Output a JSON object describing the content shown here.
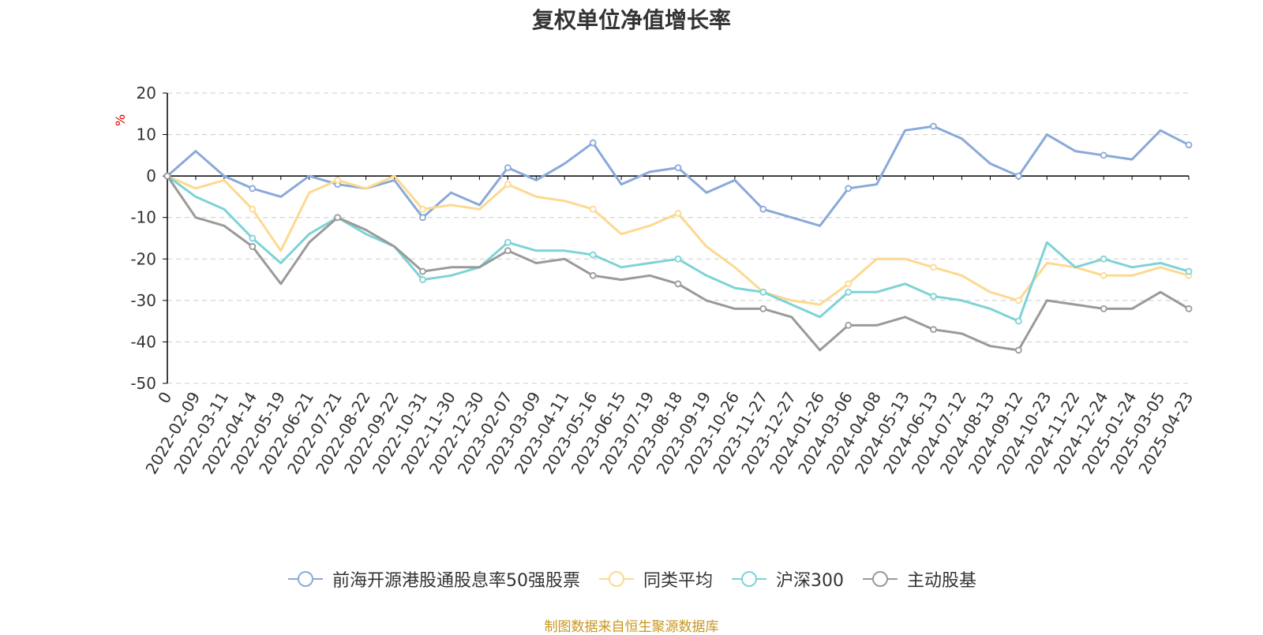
{
  "title": "复权单位净值增长率",
  "source_note": "制图数据来自恒生聚源数据库",
  "colors": {
    "fund": "#8aa9d8",
    "peer": "#fdd990",
    "hs300": "#7dd3d6",
    "active": "#9a9a9a",
    "unit": "#e00000",
    "source": "#c9961e",
    "grid": "#cccccc",
    "axis": "#000000",
    "text": "#333333"
  },
  "legend": [
    {
      "label": "前海开源港股通股息率50强股票",
      "color": "#8aa9d8",
      "icon": "circle-line-icon"
    },
    {
      "label": "同类平均",
      "color": "#fdd990",
      "icon": "circle-line-icon"
    },
    {
      "label": "沪深300",
      "color": "#7dd3d6",
      "icon": "circle-line-icon"
    },
    {
      "label": "主动股基",
      "color": "#9a9a9a",
      "icon": "circle-line-icon"
    }
  ],
  "chart_data": {
    "type": "line",
    "title": "复权单位净值增长率",
    "ylabel": "%",
    "ylim": [
      -50,
      20
    ],
    "yticks": [
      20,
      10,
      0,
      -10,
      -20,
      -30,
      -40,
      -50
    ],
    "grid": true,
    "legend_position": "bottom",
    "x": [
      "0",
      "2022-02-09",
      "2022-03-11",
      "2022-04-14",
      "2022-05-19",
      "2022-06-21",
      "2022-07-21",
      "2022-08-22",
      "2022-09-22",
      "2022-10-31",
      "2022-11-30",
      "2022-12-30",
      "2023-02-07",
      "2023-03-09",
      "2023-04-11",
      "2023-05-16",
      "2023-06-15",
      "2023-07-19",
      "2023-08-18",
      "2023-09-19",
      "2023-10-26",
      "2023-11-27",
      "2023-12-27",
      "2024-01-26",
      "2024-03-06",
      "2024-04-08",
      "2024-05-13",
      "2024-06-13",
      "2024-07-12",
      "2024-08-13",
      "2024-09-12",
      "2024-10-23",
      "2024-11-22",
      "2024-12-24",
      "2025-01-24",
      "2025-03-05",
      "2025-04-23"
    ],
    "series": [
      {
        "name": "前海开源港股通股息率50强股票",
        "color": "#8aa9d8",
        "values": [
          0,
          6,
          0,
          -3,
          -5,
          0,
          -2,
          -3,
          -1,
          -10,
          -4,
          -7,
          2,
          -1,
          3,
          8,
          -2,
          1,
          2,
          -4,
          -1,
          -8,
          -10,
          -12,
          -3,
          -2,
          11,
          12,
          9,
          3,
          0,
          10,
          6,
          5,
          4,
          11,
          7.5
        ]
      },
      {
        "name": "同类平均",
        "color": "#fdd990",
        "values": [
          0,
          -3,
          -1,
          -8,
          -18,
          -4,
          -1,
          -3,
          0,
          -8,
          -7,
          -8,
          -2,
          -5,
          -6,
          -8,
          -14,
          -12,
          -9,
          -17,
          -22,
          -28,
          -30,
          -31,
          -26,
          -20,
          -20,
          -22,
          -24,
          -28,
          -30,
          -21,
          -22,
          -24,
          -24,
          -22,
          -24
        ]
      },
      {
        "name": "沪深300",
        "color": "#7dd3d6",
        "values": [
          0,
          -5,
          -8,
          -15,
          -21,
          -14,
          -10,
          -14,
          -17,
          -25,
          -24,
          -22,
          -16,
          -18,
          -18,
          -19,
          -22,
          -21,
          -20,
          -24,
          -27,
          -28,
          -31,
          -34,
          -28,
          -28,
          -26,
          -29,
          -30,
          -32,
          -35,
          -16,
          -22,
          -20,
          -22,
          -21,
          -23
        ]
      },
      {
        "name": "主动股基",
        "color": "#9a9a9a",
        "values": [
          0,
          -10,
          -12,
          -17,
          -26,
          -16,
          -10,
          -13,
          -17,
          -23,
          -22,
          -22,
          -18,
          -21,
          -20,
          -24,
          -25,
          -24,
          -26,
          -30,
          -32,
          -32,
          -34,
          -42,
          -36,
          -36,
          -34,
          -37,
          -38,
          -41,
          -42,
          -30,
          -31,
          -32,
          -32,
          -28,
          -32
        ]
      }
    ]
  }
}
